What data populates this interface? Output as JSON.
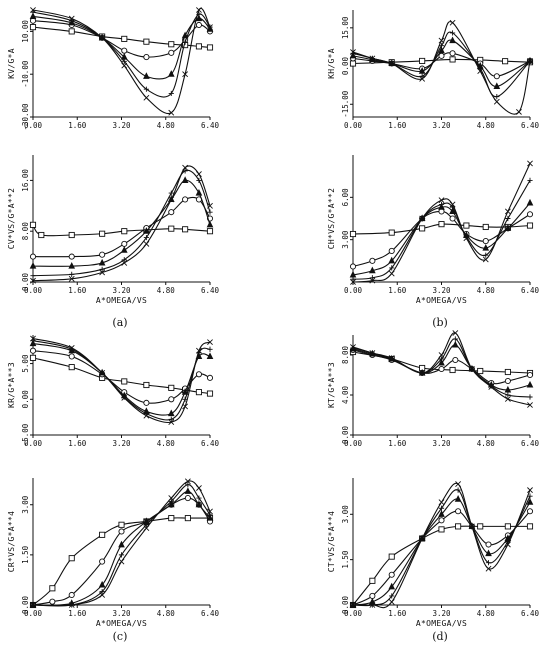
{
  "figure": {
    "panel_labels": [
      "(a)",
      "(b)",
      "(c)",
      "(d)"
    ]
  },
  "chart_data": [
    {
      "type": "line",
      "panel": "a-top",
      "ylabel": "KV/G*A",
      "xlabel": "",
      "xlim": [
        0,
        6.4
      ],
      "ylim": [
        -30,
        20
      ],
      "xticks": [
        "0.00",
        "1.60",
        "3.20",
        "4.80",
        "6.40"
      ],
      "yticks": [
        "-30.00",
        "-10.00",
        "10.00"
      ],
      "series": [
        {
          "marker": "square",
          "x": [
            0,
            1.4,
            2.5,
            3.3,
            4.1,
            5.0,
            5.5,
            6.0,
            6.4
          ],
          "y": [
            12,
            10,
            7.6,
            6.5,
            5.2,
            4,
            3.6,
            3,
            2.5
          ]
        },
        {
          "marker": "circle",
          "x": [
            0,
            1.4,
            2.5,
            3.3,
            4.1,
            5.0,
            5.5,
            6.0,
            6.4
          ],
          "y": [
            15,
            13,
            7,
            1,
            -2,
            0,
            6,
            13,
            10
          ]
        },
        {
          "marker": "triangle",
          "x": [
            0,
            1.4,
            2.5,
            3.3,
            4.1,
            5.0,
            5.5,
            6.0,
            6.4
          ],
          "y": [
            17,
            14,
            7,
            -2,
            -11,
            -10,
            8,
            16,
            11
          ]
        },
        {
          "marker": "plus",
          "x": [
            0,
            1.4,
            2.5,
            3.3,
            4.1,
            5.0,
            5.5,
            6.0,
            6.4
          ],
          "y": [
            19,
            15,
            7,
            -4,
            -17,
            -19,
            5,
            18,
            12
          ]
        },
        {
          "marker": "x",
          "x": [
            0,
            1.4,
            2.5,
            3.3,
            4.1,
            5.0,
            5.5,
            6.0,
            6.4
          ],
          "y": [
            20,
            16,
            7,
            -6,
            -21,
            -28,
            -10,
            20,
            12
          ]
        }
      ]
    },
    {
      "type": "line",
      "panel": "a-bottom",
      "ylabel": "CV*VS/G*A**2",
      "xlabel": "A*OMEGA/VS",
      "xlim": [
        0,
        6.4
      ],
      "ylim": [
        0,
        20
      ],
      "xticks": [
        "0.00",
        "1.60",
        "3.20",
        "4.80",
        "6.40"
      ],
      "yticks": [
        "0.00",
        "8.00",
        "16.00"
      ],
      "series": [
        {
          "marker": "square",
          "x": [
            0,
            0.3,
            1.4,
            2.5,
            3.3,
            4.1,
            5.0,
            5.5,
            6.4
          ],
          "y": [
            9,
            7.4,
            7.4,
            7.6,
            8,
            8.2,
            8.4,
            8.3,
            8
          ]
        },
        {
          "marker": "circle",
          "x": [
            0,
            1.4,
            2.5,
            3.3,
            4.1,
            5.0,
            5.5,
            6.0,
            6.4
          ],
          "y": [
            4,
            4,
            4.3,
            6,
            8.5,
            11,
            13,
            13,
            10
          ]
        },
        {
          "marker": "triangle",
          "x": [
            0,
            1.4,
            2.5,
            3.3,
            4.1,
            5.0,
            5.5,
            6.0,
            6.4
          ],
          "y": [
            2.5,
            2.5,
            3,
            5,
            8,
            13,
            16,
            14,
            9
          ]
        },
        {
          "marker": "plus",
          "x": [
            0,
            1.4,
            2.5,
            3.3,
            4.1,
            5.0,
            5.5,
            6.0,
            6.4
          ],
          "y": [
            1,
            1.2,
            2,
            3.5,
            7,
            14,
            17.5,
            16,
            11
          ]
        },
        {
          "marker": "x",
          "x": [
            0,
            1.4,
            2.5,
            3.3,
            4.1,
            5.0,
            5.5,
            6.0,
            6.4
          ],
          "y": [
            0.2,
            0.5,
            1.5,
            3,
            6,
            13,
            18,
            17,
            12
          ]
        }
      ]
    },
    {
      "type": "line",
      "panel": "b-top",
      "ylabel": "KH/G*A",
      "xlabel": "",
      "xlim": [
        0,
        6.4
      ],
      "ylim": [
        -20,
        22
      ],
      "xticks": [
        "0.00",
        "1.60",
        "3.20",
        "4.80",
        "6.40"
      ],
      "yticks": [
        "-15.00",
        "0.00",
        "15.00"
      ],
      "series": [
        {
          "marker": "square",
          "x": [
            0,
            1.4,
            2.5,
            3.6,
            4.6,
            5.5,
            6.4
          ],
          "y": [
            1,
            1.5,
            2,
            2.6,
            2.4,
            1.9,
            1.5
          ]
        },
        {
          "marker": "circle",
          "x": [
            0,
            0.7,
            1.4,
            2.5,
            3.2,
            3.6,
            4.6,
            5.2,
            6.4
          ],
          "y": [
            3,
            2,
            1,
            -1,
            4,
            5,
            1,
            -4,
            2
          ]
        },
        {
          "marker": "triangle",
          "x": [
            0,
            0.7,
            1.4,
            2.5,
            3.2,
            3.6,
            4.6,
            5.2,
            6.4
          ],
          "y": [
            4,
            2.5,
            1,
            -2,
            6,
            10,
            0,
            -8,
            2
          ]
        },
        {
          "marker": "plus",
          "x": [
            0,
            0.7,
            1.4,
            2.5,
            3.2,
            3.6,
            4.6,
            5.2,
            6.4
          ],
          "y": [
            5,
            3,
            1,
            -4,
            8,
            13,
            -1,
            -12,
            2
          ]
        },
        {
          "marker": "x",
          "x": [
            0,
            0.7,
            1.4,
            2.5,
            3.2,
            3.6,
            4.6,
            5.2,
            6.0,
            6.4
          ],
          "y": [
            5.5,
            3,
            1,
            -5,
            10,
            17,
            -2,
            -14,
            -18,
            2
          ]
        }
      ]
    },
    {
      "type": "line",
      "panel": "b-bottom",
      "ylabel": "CH*VS/G*A**2",
      "xlabel": "A*OMEGA/VS",
      "xlim": [
        0,
        6.4
      ],
      "ylim": [
        0,
        9
      ],
      "xticks": [
        "0.00",
        "1.60",
        "3.20",
        "4.80",
        "6.40"
      ],
      "yticks": [
        "3.00",
        "6.00"
      ],
      "series": [
        {
          "marker": "square",
          "x": [
            0,
            1.4,
            2.5,
            3.2,
            4.1,
            4.8,
            5.6,
            6.4
          ],
          "y": [
            3.4,
            3.5,
            3.8,
            4.1,
            4,
            3.9,
            3.9,
            4
          ]
        },
        {
          "marker": "circle",
          "x": [
            0,
            0.7,
            1.4,
            2.5,
            3.2,
            3.6,
            4.1,
            4.8,
            5.6,
            6.4
          ],
          "y": [
            1.1,
            1.5,
            2.2,
            4.5,
            5,
            4.5,
            3.4,
            2.9,
            3.8,
            4.8
          ]
        },
        {
          "marker": "triangle",
          "x": [
            0,
            0.7,
            1.4,
            2.5,
            3.2,
            3.6,
            4.1,
            4.8,
            5.6,
            6.4
          ],
          "y": [
            0.5,
            0.8,
            1.5,
            4.5,
            5.3,
            5,
            3.3,
            2.4,
            3.8,
            5.6
          ]
        },
        {
          "marker": "plus",
          "x": [
            0,
            0.7,
            1.4,
            2.5,
            3.2,
            3.6,
            4.1,
            4.8,
            5.6,
            6.4
          ],
          "y": [
            0.2,
            0.3,
            1,
            4.5,
            5.5,
            5.3,
            3.2,
            1.9,
            4.5,
            7.2
          ]
        },
        {
          "marker": "x",
          "x": [
            0,
            0.7,
            1.4,
            2.5,
            3.2,
            3.6,
            4.1,
            4.8,
            5.6,
            6.4
          ],
          "y": [
            0,
            0.1,
            0.6,
            4.5,
            5.8,
            5.5,
            3.1,
            1.6,
            5,
            8.4
          ]
        }
      ]
    },
    {
      "type": "line",
      "panel": "c-top",
      "ylabel": "KR/G*A**3",
      "xlabel": "",
      "xlim": [
        0,
        6.4
      ],
      "ylim": [
        -5,
        9
      ],
      "xticks": [
        "0.00",
        "1.60",
        "3.20",
        "4.80",
        "6.40"
      ],
      "yticks": [
        "-5.00",
        "0.00",
        "5.00"
      ],
      "series": [
        {
          "marker": "square",
          "x": [
            0,
            1.4,
            2.5,
            3.3,
            4.1,
            5.0,
            5.5,
            6.0,
            6.4
          ],
          "y": [
            5.8,
            4.5,
            3,
            2.5,
            2,
            1.6,
            1.3,
            1,
            0.8
          ]
        },
        {
          "marker": "circle",
          "x": [
            0,
            1.4,
            2.5,
            3.3,
            4.1,
            5.0,
            5.5,
            6.0,
            6.4
          ],
          "y": [
            6.8,
            6,
            3.5,
            1,
            -0.5,
            0,
            1.5,
            3.5,
            3
          ]
        },
        {
          "marker": "triangle",
          "x": [
            0,
            1.4,
            2.5,
            3.3,
            4.1,
            5.0,
            5.5,
            6.0,
            6.4
          ],
          "y": [
            7.8,
            6.8,
            3.7,
            0.5,
            -1.7,
            -2,
            1,
            6,
            6
          ]
        },
        {
          "marker": "plus",
          "x": [
            0,
            1.4,
            2.5,
            3.3,
            4.1,
            5.0,
            5.5,
            6.0,
            6.4
          ],
          "y": [
            8.2,
            7,
            3.7,
            0.3,
            -2,
            -2.8,
            0,
            6.5,
            7
          ]
        },
        {
          "marker": "x",
          "x": [
            0,
            1.4,
            2.5,
            3.3,
            4.1,
            5.0,
            5.5,
            6.0,
            6.4
          ],
          "y": [
            8.5,
            7.2,
            3.7,
            0.2,
            -2.3,
            -3.2,
            -1,
            6.8,
            8
          ]
        }
      ]
    },
    {
      "type": "line",
      "panel": "c-bottom",
      "ylabel": "CR*VS/G*A**4",
      "xlabel": "A*OMEGA/VS",
      "xlim": [
        0,
        6.4
      ],
      "ylim": [
        0,
        3.8
      ],
      "xticks": [
        "0.00",
        "1.60",
        "3.20",
        "4.80",
        "6.40"
      ],
      "yticks": [
        "0.00",
        "1.50",
        "3.00"
      ],
      "series": [
        {
          "marker": "square",
          "x": [
            0,
            0.7,
            1.4,
            2.5,
            3.2,
            4.1,
            5.0,
            5.6,
            6.4
          ],
          "y": [
            0,
            0.5,
            1.4,
            2.1,
            2.4,
            2.5,
            2.6,
            2.6,
            2.6
          ]
        },
        {
          "marker": "circle",
          "x": [
            0,
            0.7,
            1.4,
            2.5,
            3.2,
            4.1,
            5.0,
            5.6,
            6.0,
            6.4
          ],
          "y": [
            0,
            0.1,
            0.3,
            1.3,
            2.2,
            2.5,
            3,
            3.2,
            3,
            2.5
          ]
        },
        {
          "marker": "triangle",
          "x": [
            0,
            1.4,
            2.5,
            3.2,
            4.1,
            5.0,
            5.6,
            6.0,
            6.4
          ],
          "y": [
            0,
            0.05,
            0.6,
            1.8,
            2.5,
            3,
            3.4,
            3,
            2.6
          ]
        },
        {
          "marker": "plus",
          "x": [
            0,
            1.4,
            2.5,
            3.2,
            4.1,
            5.0,
            5.6,
            6.0,
            6.4
          ],
          "y": [
            0,
            0,
            0.4,
            1.5,
            2.4,
            3.1,
            3.6,
            3.2,
            2.7
          ]
        },
        {
          "marker": "x",
          "x": [
            0,
            1.4,
            2.5,
            3.2,
            4.1,
            5.0,
            5.6,
            6.0,
            6.4
          ],
          "y": [
            0,
            0,
            0.3,
            1.3,
            2.3,
            3.2,
            3.7,
            3.5,
            2.8
          ]
        }
      ]
    },
    {
      "type": "line",
      "panel": "d-top",
      "ylabel": "KT/G*A**3",
      "xlabel": "",
      "xlim": [
        0,
        6.4
      ],
      "ylim": [
        0,
        10
      ],
      "xticks": [
        "0.00",
        "1.60",
        "3.20",
        "4.80",
        "6.40"
      ],
      "yticks": [
        "0.00",
        "4.00",
        "8.00"
      ],
      "series": [
        {
          "marker": "square",
          "x": [
            0,
            1.4,
            2.5,
            3.6,
            4.6,
            5.6,
            6.4
          ],
          "y": [
            8.3,
            7.6,
            6.7,
            6.5,
            6.4,
            6.3,
            6.2
          ]
        },
        {
          "marker": "circle",
          "x": [
            0,
            0.7,
            1.4,
            2.5,
            3.2,
            3.7,
            4.3,
            5.0,
            5.6,
            6.4
          ],
          "y": [
            8.5,
            8,
            7.5,
            6.2,
            6.6,
            7.5,
            6.6,
            5.2,
            5.4,
            6
          ]
        },
        {
          "marker": "triangle",
          "x": [
            0,
            0.7,
            1.4,
            2.5,
            3.2,
            3.7,
            4.3,
            5.0,
            5.6,
            6.4
          ],
          "y": [
            8.6,
            8.1,
            7.6,
            6.2,
            7.2,
            9,
            6.6,
            5,
            4.5,
            5
          ]
        },
        {
          "marker": "plus",
          "x": [
            0,
            0.7,
            1.4,
            2.5,
            3.2,
            3.7,
            4.3,
            5.0,
            5.6,
            6.4
          ],
          "y": [
            8.7,
            8.2,
            7.6,
            6.2,
            7.6,
            9.6,
            6.6,
            4.9,
            4,
            3.8
          ]
        },
        {
          "marker": "x",
          "x": [
            0,
            0.7,
            1.4,
            2.5,
            3.2,
            3.7,
            4.3,
            5.0,
            5.6,
            6.4
          ],
          "y": [
            8.8,
            8.2,
            7.7,
            6.2,
            8,
            10.2,
            6.6,
            4.8,
            3.6,
            3
          ]
        }
      ]
    },
    {
      "type": "line",
      "panel": "d-bottom",
      "ylabel": "CT*VS/G*A**4",
      "xlabel": "A*OMEGA/VS",
      "xlim": [
        0,
        6.4
      ],
      "ylim": [
        0,
        4.2
      ],
      "xticks": [
        "0.00",
        "1.60",
        "3.20",
        "4.80",
        "6.40"
      ],
      "yticks": [
        "0.00",
        "1.50",
        "3.00"
      ],
      "series": [
        {
          "marker": "square",
          "x": [
            0,
            0.7,
            1.4,
            2.5,
            3.2,
            3.8,
            4.6,
            5.6,
            6.4
          ],
          "y": [
            0,
            0.8,
            1.6,
            2.2,
            2.5,
            2.6,
            2.6,
            2.6,
            2.6
          ]
        },
        {
          "marker": "circle",
          "x": [
            0,
            0.7,
            1.4,
            2.5,
            3.2,
            3.8,
            4.3,
            4.9,
            5.6,
            6.4
          ],
          "y": [
            0,
            0.3,
            1,
            2.2,
            2.8,
            3.1,
            2.6,
            2,
            2.3,
            3.1
          ]
        },
        {
          "marker": "triangle",
          "x": [
            0,
            0.7,
            1.4,
            2.5,
            3.2,
            3.8,
            4.3,
            4.9,
            5.6,
            6.4
          ],
          "y": [
            0,
            0.1,
            0.6,
            2.2,
            3,
            3.5,
            2.6,
            1.7,
            2.2,
            3.4
          ]
        },
        {
          "marker": "plus",
          "x": [
            0,
            0.7,
            1.4,
            2.5,
            3.2,
            3.8,
            4.3,
            4.9,
            5.6,
            6.4
          ],
          "y": [
            0,
            0,
            0.3,
            2.2,
            3.2,
            3.8,
            2.6,
            1.4,
            2.1,
            3.6
          ]
        },
        {
          "marker": "x",
          "x": [
            0,
            0.7,
            1.4,
            2.5,
            3.2,
            3.8,
            4.3,
            4.9,
            5.6,
            6.4
          ],
          "y": [
            0,
            0,
            0.1,
            2.2,
            3.4,
            4.0,
            2.6,
            1.2,
            2.0,
            3.8
          ]
        }
      ]
    }
  ]
}
